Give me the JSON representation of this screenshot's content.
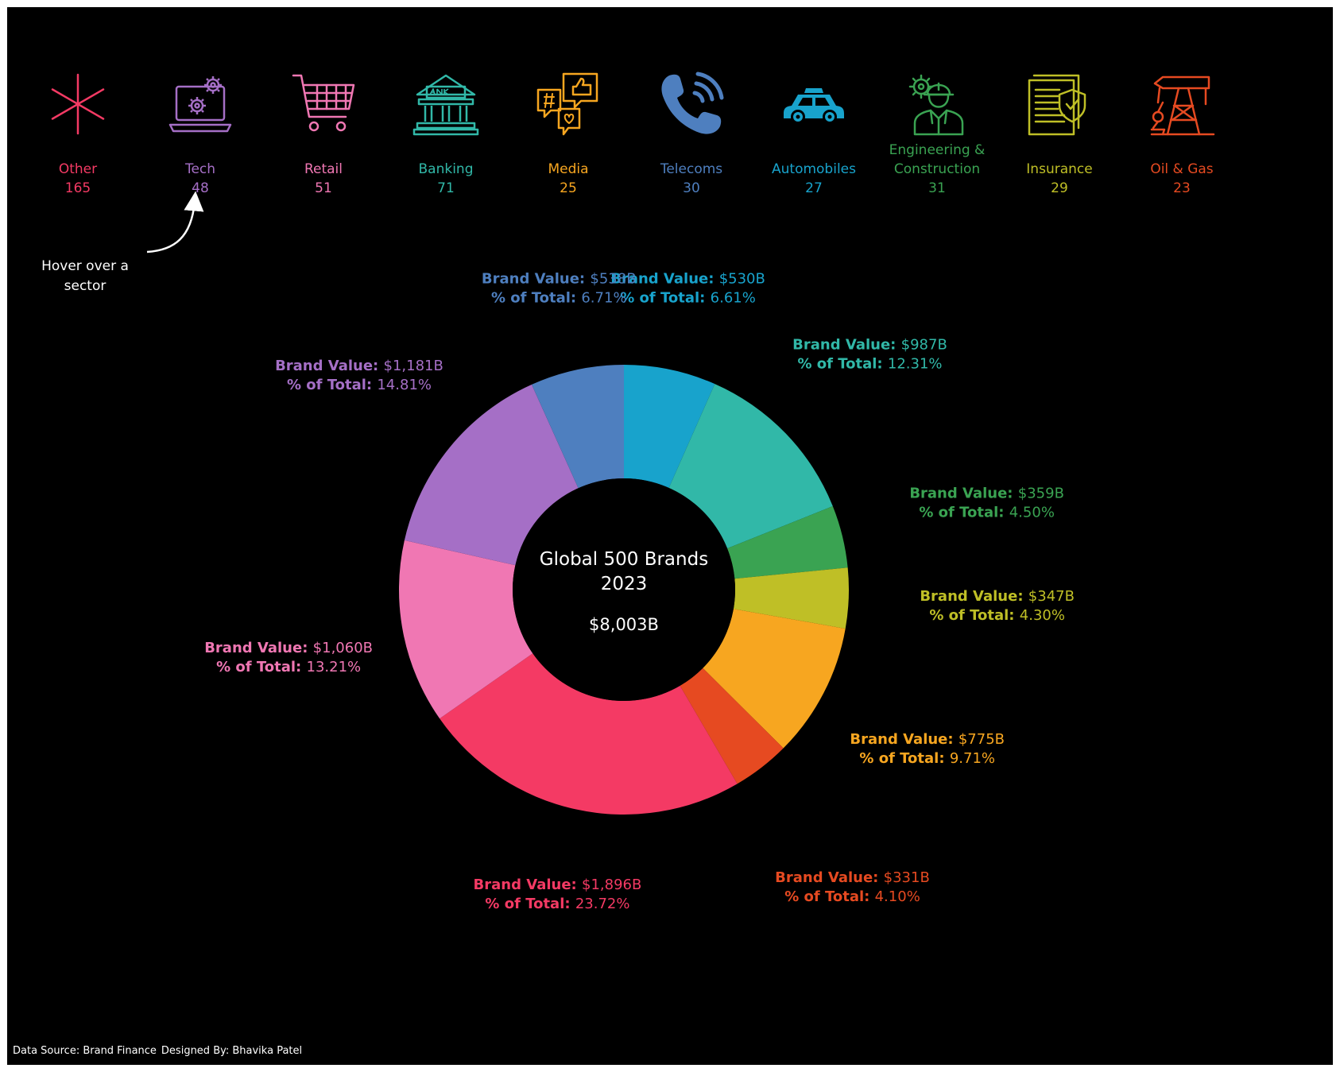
{
  "sectors": [
    {
      "name": "Other",
      "name2": "",
      "count": "165",
      "color": "#f43a64",
      "icon": "asterisk-icon"
    },
    {
      "name": "Tech",
      "name2": "",
      "count": "48",
      "color": "#a56fc6",
      "icon": "laptop-gear-icon"
    },
    {
      "name": "Retail",
      "name2": "",
      "count": "51",
      "color": "#f077b3",
      "icon": "shopping-cart-icon"
    },
    {
      "name": "Banking",
      "name2": "",
      "count": "71",
      "color": "#31b8a8",
      "icon": "bank-icon"
    },
    {
      "name": "Media",
      "name2": "",
      "count": "25",
      "color": "#f7a620",
      "icon": "social-media-icon"
    },
    {
      "name": "Telecoms",
      "name2": "",
      "count": "30",
      "color": "#4e7fbf",
      "icon": "phone-icon"
    },
    {
      "name": "Automobiles",
      "name2": "",
      "count": "27",
      "color": "#18a3cc",
      "icon": "car-icon"
    },
    {
      "name": "Engineering &",
      "name2": "Construction",
      "count": "31",
      "color": "#3aa352",
      "icon": "engineer-icon"
    },
    {
      "name": "Insurance",
      "name2": "",
      "count": "29",
      "color": "#bfbf26",
      "icon": "insurance-document-icon"
    },
    {
      "name": "Oil & Gas",
      "name2": "",
      "count": "23",
      "color": "#e64a21",
      "icon": "oil-pump-icon"
    }
  ],
  "hint": {
    "line1": "Hover over a",
    "line2": "sector"
  },
  "footer": {
    "source": "Data Source: Brand Finance",
    "designer": "Designed By: Bhavika Patel"
  },
  "chart_data": {
    "type": "pie",
    "donut": true,
    "center": {
      "line1": "Global 500 Brands",
      "line2": "2023",
      "total": "$8,003B"
    },
    "value_key": "Brand Value:",
    "pct_key": "% of Total:",
    "slices": [
      {
        "sector": "Automobiles",
        "value": 530,
        "value_label": "$530B",
        "pct": 6.61,
        "pct_label": "6.61%",
        "color": "#18a3cc"
      },
      {
        "sector": "Banking",
        "value": 987,
        "value_label": "$987B",
        "pct": 12.31,
        "pct_label": "12.31%",
        "color": "#31b8a8"
      },
      {
        "sector": "Engineering & Construction",
        "value": 359,
        "value_label": "$359B",
        "pct": 4.5,
        "pct_label": "4.50%",
        "color": "#3aa352"
      },
      {
        "sector": "Insurance",
        "value": 347,
        "value_label": "$347B",
        "pct": 4.3,
        "pct_label": "4.30%",
        "color": "#bfbf26"
      },
      {
        "sector": "Media",
        "value": 775,
        "value_label": "$775B",
        "pct": 9.71,
        "pct_label": "9.71%",
        "color": "#f7a620"
      },
      {
        "sector": "Oil & Gas",
        "value": 331,
        "value_label": "$331B",
        "pct": 4.1,
        "pct_label": "4.10%",
        "color": "#e64a21"
      },
      {
        "sector": "Other",
        "value": 1896,
        "value_label": "$1,896B",
        "pct": 23.72,
        "pct_label": "23.72%",
        "color": "#f43a64"
      },
      {
        "sector": "Retail",
        "value": 1060,
        "value_label": "$1,060B",
        "pct": 13.21,
        "pct_label": "13.21%",
        "color": "#f077b3"
      },
      {
        "sector": "Tech",
        "value": 1181,
        "value_label": "$1,181B",
        "pct": 14.81,
        "pct_label": "14.81%",
        "color": "#a56fc6"
      },
      {
        "sector": "Telecoms",
        "value": 538,
        "value_label": "$538B",
        "pct": 6.71,
        "pct_label": "6.71%",
        "color": "#4e7fbf"
      }
    ]
  }
}
